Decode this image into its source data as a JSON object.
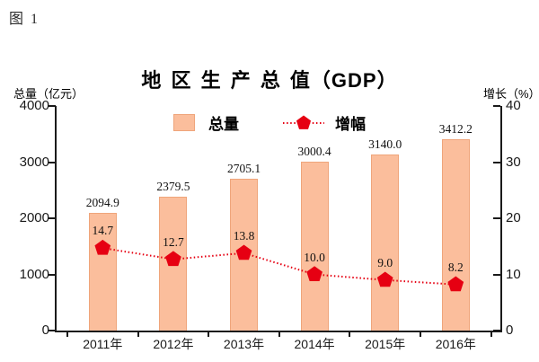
{
  "figure_label": "图 1",
  "chart_data": {
    "type": "bar+line",
    "title": "地 区 生 产 总 值（GDP）",
    "categories": [
      "2011年",
      "2012年",
      "2013年",
      "2014年",
      "2015年",
      "2016年"
    ],
    "left_axis": {
      "title": "总量（亿元）",
      "min": 0,
      "max": 4000,
      "ticks": [
        0,
        1000,
        2000,
        3000,
        4000
      ]
    },
    "right_axis": {
      "title": "增长（%）",
      "min": 0,
      "max": 40,
      "ticks": [
        0,
        10,
        20,
        30,
        40
      ]
    },
    "series": [
      {
        "name": "总量",
        "type": "bar",
        "axis": "left",
        "values": [
          2094.9,
          2379.5,
          2705.1,
          3000.4,
          3140.0,
          3412.2
        ]
      },
      {
        "name": "增幅",
        "type": "line",
        "axis": "right",
        "marker": "pentagon",
        "values": [
          14.7,
          12.7,
          13.8,
          10.0,
          9.0,
          8.2
        ]
      }
    ],
    "legend_position": "top",
    "grid": "off"
  },
  "colors": {
    "bar_fill": "#FBBE9C",
    "bar_border": "#EFA57B",
    "line_color": "#E60012",
    "marker_color": "#E60012",
    "axis_color": "#1a1a1a",
    "text_color": "#111111",
    "background": "#ffffff"
  }
}
